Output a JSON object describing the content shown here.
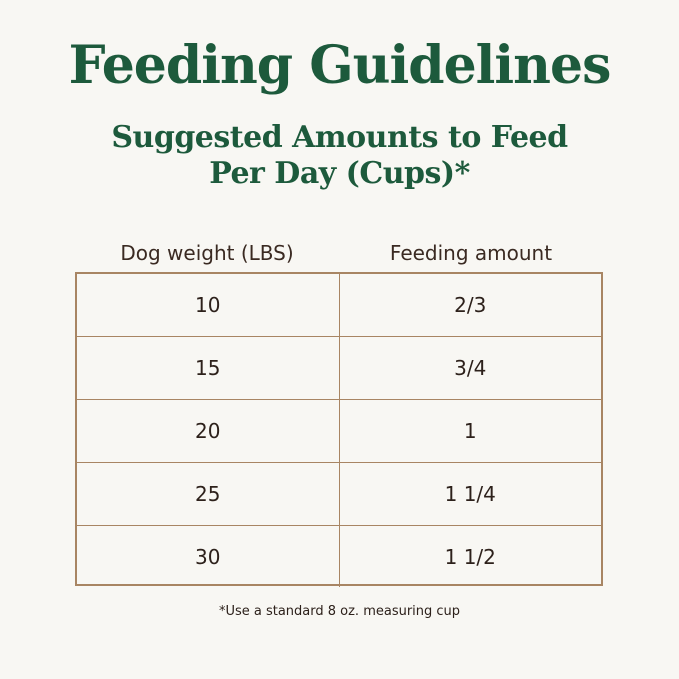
{
  "title": "Feeding Guidelines",
  "subtitle": {
    "line1": "Suggested Amounts to Feed",
    "line2": "Per Day (Cups)*"
  },
  "table": {
    "headers": [
      "Dog weight (LBS)",
      "Feeding amount"
    ],
    "rows": [
      [
        "10",
        "2/3"
      ],
      [
        "15",
        "3/4"
      ],
      [
        "20",
        "1"
      ],
      [
        "25",
        "1 1/4"
      ],
      [
        "30",
        "1 1/2"
      ]
    ]
  },
  "footnote": "*Use a standard 8 oz. measuring cup",
  "colors": {
    "title": "#1d5a3c",
    "border": "#a88563",
    "background": "#f8f7f3"
  }
}
